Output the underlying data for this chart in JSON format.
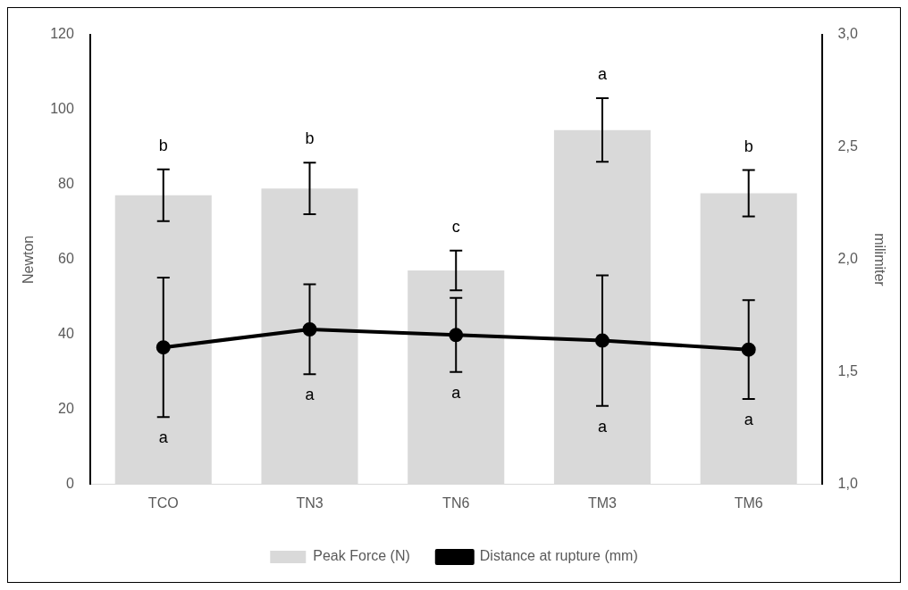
{
  "chart_data": {
    "type": "bar",
    "categories": [
      "TCO",
      "TN3",
      "TN6",
      "TM3",
      "TM6"
    ],
    "series": [
      {
        "name": "Peak Force (N)",
        "color": "#d9d9d9",
        "values": [
          77.2,
          79,
          57.1,
          94.6,
          77.7
        ],
        "errors": [
          6.9,
          6.9,
          5.3,
          8.5,
          6.2
        ]
      },
      {
        "name": "Distance at rupture (mm)",
        "type": "line",
        "axis": "y2",
        "color": "#000000",
        "values": [
          1.61,
          1.69,
          1.665,
          1.64,
          1.6
        ],
        "errors": [
          0.31,
          0.2,
          0.165,
          0.29,
          0.22
        ]
      }
    ],
    "ylabel": "Newton",
    "y2label": "milimiter",
    "ylim": [
      0,
      120
    ],
    "yticks": [
      0,
      20,
      40,
      60,
      80,
      100,
      120
    ],
    "y2lim": [
      1,
      3
    ],
    "y2ticks": [
      {
        "value": 1,
        "label": "1,0"
      },
      {
        "value": 1.5,
        "label": "1,5"
      },
      {
        "value": 2,
        "label": "2,0"
      },
      {
        "value": 2.5,
        "label": "2,5"
      },
      {
        "value": 3,
        "label": "3,0"
      }
    ],
    "annotations": [
      "b",
      "a",
      "b",
      "a",
      "c",
      "a",
      "a",
      "a",
      "b",
      "a"
    ],
    "grid": false,
    "legend": "bottom",
    "marker": "circle",
    "line_style": "solid"
  }
}
